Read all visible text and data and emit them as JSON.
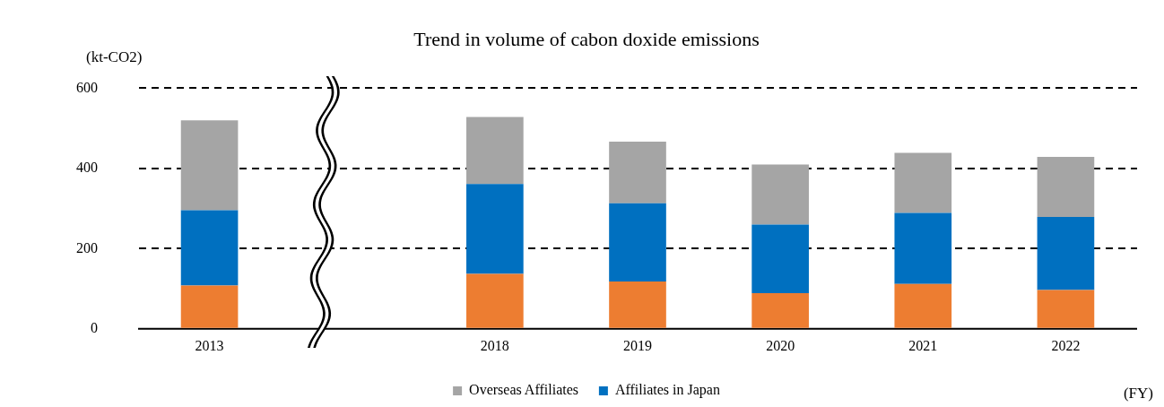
{
  "chart_data": {
    "type": "bar",
    "title": "Trend in volume of cabon doxide emissions",
    "ylabel": "(kt-CO2)",
    "xlabel": "(FY)",
    "categories": [
      "2013",
      null,
      "2018",
      "2019",
      "2020",
      "2021",
      "2022"
    ],
    "stacked": true,
    "grid": "y",
    "legend": "bottom",
    "series": [
      {
        "color": "#ed7d31",
        "values": [
          108,
          null,
          137,
          118,
          89,
          112,
          97
        ]
      },
      {
        "name": "Affiliates in Japan",
        "color": "#0070c0",
        "values": [
          188,
          null,
          224,
          195,
          171,
          177,
          182
        ]
      },
      {
        "name": "Overseas Affiliates",
        "color": "#a5a5a5",
        "values": [
          224,
          null,
          167,
          154,
          150,
          150,
          150
        ]
      }
    ],
    "ylim": [
      0,
      600
    ],
    "yticks": [
      0,
      200,
      400,
      600
    ]
  }
}
